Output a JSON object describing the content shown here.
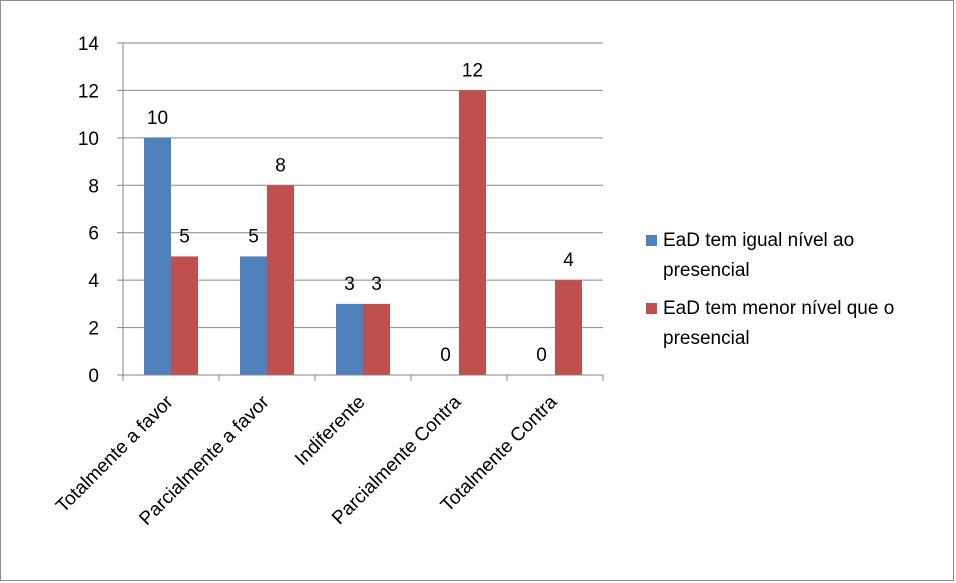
{
  "chart_data": {
    "type": "bar",
    "title": "",
    "xlabel": "",
    "ylabel": "",
    "categories": [
      "Totalmente a favor",
      "Parcialmente a favor",
      "Indiferente",
      "Parcialmente Contra",
      "Totalmente Contra"
    ],
    "series": [
      {
        "name": "EaD tem igual nível ao presencial",
        "values": [
          10,
          5,
          3,
          0,
          0
        ],
        "color": "#4f81bd"
      },
      {
        "name": "EaD tem menor nível que o presencial",
        "values": [
          5,
          8,
          3,
          12,
          4
        ],
        "color": "#c0504d"
      }
    ],
    "ylim": [
      0,
      14
    ],
    "yticks": [
      0,
      2,
      4,
      6,
      8,
      10,
      12,
      14
    ],
    "grid": true,
    "legend": "right",
    "data_labels": true
  }
}
